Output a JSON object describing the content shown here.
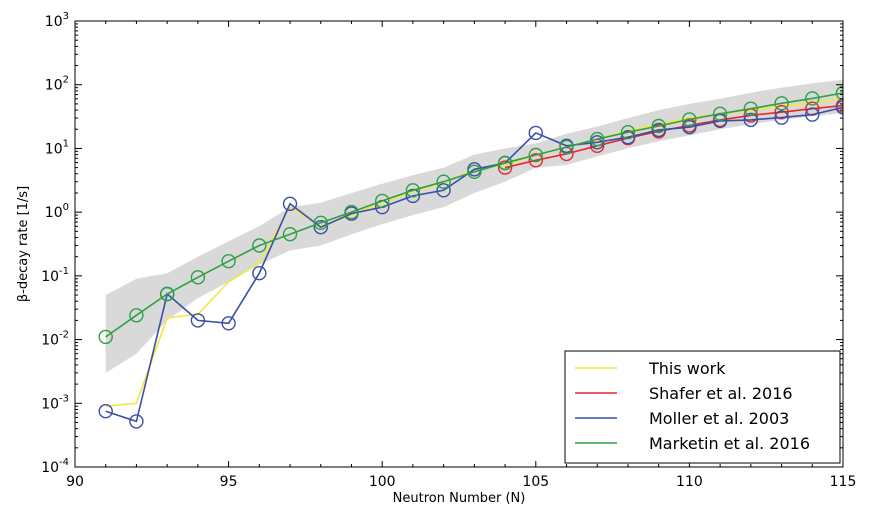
{
  "chart_data": {
    "type": "line",
    "title": "",
    "xlabel": "Neutron Number (N)",
    "ylabel": "β-decay rate [1/s]",
    "yscale": "log",
    "xlim": [
      90,
      115
    ],
    "ylim_exp": [
      -4,
      3
    ],
    "x_ticks": [
      "90",
      "95",
      "100",
      "105",
      "110",
      "115"
    ],
    "y_tick_base": "10",
    "y_tick_exponents": [
      "-4",
      "-3",
      "-2",
      "-1",
      "0",
      "1",
      "2",
      "3"
    ],
    "legend_position": "lower-right",
    "band": {
      "x": [
        91,
        92,
        93,
        94,
        95,
        96,
        97,
        98,
        99,
        100,
        101,
        102,
        103,
        104,
        105,
        106,
        107,
        108,
        109,
        110,
        111,
        112,
        113,
        114,
        115
      ],
      "lower": [
        0.003,
        0.006,
        0.02,
        0.045,
        0.08,
        0.15,
        0.25,
        0.3,
        0.45,
        0.65,
        0.9,
        1.2,
        2,
        3,
        5,
        5.5,
        7.5,
        10,
        13,
        16,
        20,
        24,
        28,
        32,
        36
      ],
      "upper": [
        0.05,
        0.09,
        0.11,
        0.2,
        0.35,
        0.6,
        1.2,
        1.4,
        2.0,
        2.8,
        3.8,
        5.0,
        8.0,
        10,
        12,
        17,
        22,
        30,
        40,
        50,
        60,
        75,
        90,
        105,
        120
      ],
      "color": "#d9d9d9"
    },
    "series": [
      {
        "name": "This work",
        "color": "#f2e840",
        "markers": false,
        "x": [
          91,
          92,
          93,
          94,
          95,
          96,
          97,
          98,
          99,
          100,
          101,
          102,
          103,
          104,
          105,
          106,
          107,
          108,
          109,
          110,
          111,
          112,
          113,
          114,
          115
        ],
        "values": [
          0.0009,
          0.001,
          0.022,
          0.025,
          0.08,
          0.16,
          1.2,
          0.6,
          0.9,
          1.4,
          2.1,
          2.9,
          4.6,
          5.5,
          8,
          10.5,
          14,
          19,
          24,
          30,
          35,
          40,
          46,
          52,
          60
        ]
      },
      {
        "name": "Shafer et al. 2016",
        "color": "#e8272a",
        "markers": true,
        "x": [
          104,
          105,
          106,
          107,
          108,
          109,
          110,
          111,
          112,
          113,
          114,
          115
        ],
        "values": [
          5,
          6.5,
          8.2,
          11,
          14.5,
          18.5,
          23,
          28,
          33,
          37,
          42,
          47
        ]
      },
      {
        "name": "Moller et al. 2003",
        "color": "#3a4fa8",
        "markers": true,
        "x": [
          91,
          92,
          93,
          94,
          95,
          96,
          97,
          98,
          99,
          100,
          101,
          102,
          103,
          104,
          105,
          106,
          107,
          108,
          109,
          110,
          111,
          112,
          113,
          114,
          115
        ],
        "values": [
          0.00075,
          0.00052,
          0.052,
          0.02,
          0.018,
          0.11,
          1.35,
          0.58,
          0.95,
          1.2,
          1.8,
          2.2,
          4.7,
          5.9,
          17.5,
          11,
          12.5,
          15,
          19.5,
          21.5,
          27,
          28,
          30.5,
          34,
          44
        ]
      },
      {
        "name": "Marketin et al. 2016",
        "color": "#2ea046",
        "markers": true,
        "x": [
          91,
          92,
          93,
          94,
          95,
          96,
          97,
          98,
          99,
          100,
          101,
          102,
          103,
          104,
          105,
          106,
          107,
          108,
          109,
          110,
          111,
          112,
          113,
          114,
          115
        ],
        "values": [
          0.011,
          0.024,
          0.052,
          0.095,
          0.17,
          0.3,
          0.45,
          0.68,
          1.0,
          1.5,
          2.2,
          3.0,
          4.3,
          5.9,
          7.9,
          10.5,
          14,
          18,
          22.5,
          28.5,
          35,
          42,
          51,
          61,
          74
        ]
      }
    ]
  }
}
